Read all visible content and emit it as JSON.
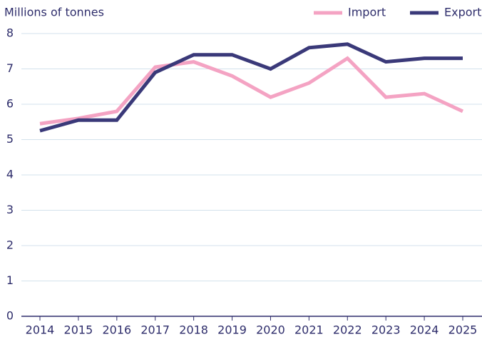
{
  "chart_data": {
    "type": "line",
    "y_label": "Millions of tonnes",
    "categories": [
      "2014",
      "2015",
      "2016",
      "2017",
      "2018",
      "2019",
      "2020",
      "2021",
      "2022",
      "2023",
      "2024",
      "2025"
    ],
    "series": [
      {
        "name": "Import",
        "color": "#f4a3c3",
        "values": [
          5.45,
          5.6,
          5.8,
          7.05,
          7.2,
          6.8,
          6.2,
          6.6,
          7.3,
          6.2,
          6.3,
          5.8
        ]
      },
      {
        "name": "Export",
        "color": "#3a3979",
        "values": [
          5.25,
          5.55,
          5.55,
          6.9,
          7.4,
          7.4,
          7.0,
          7.6,
          7.7,
          7.2,
          7.3,
          7.3
        ]
      }
    ],
    "ylim": [
      0,
      8
    ],
    "yticks": [
      0,
      1,
      2,
      3,
      4,
      5,
      6,
      7,
      8
    ],
    "grid": true,
    "legend": "top-right"
  }
}
